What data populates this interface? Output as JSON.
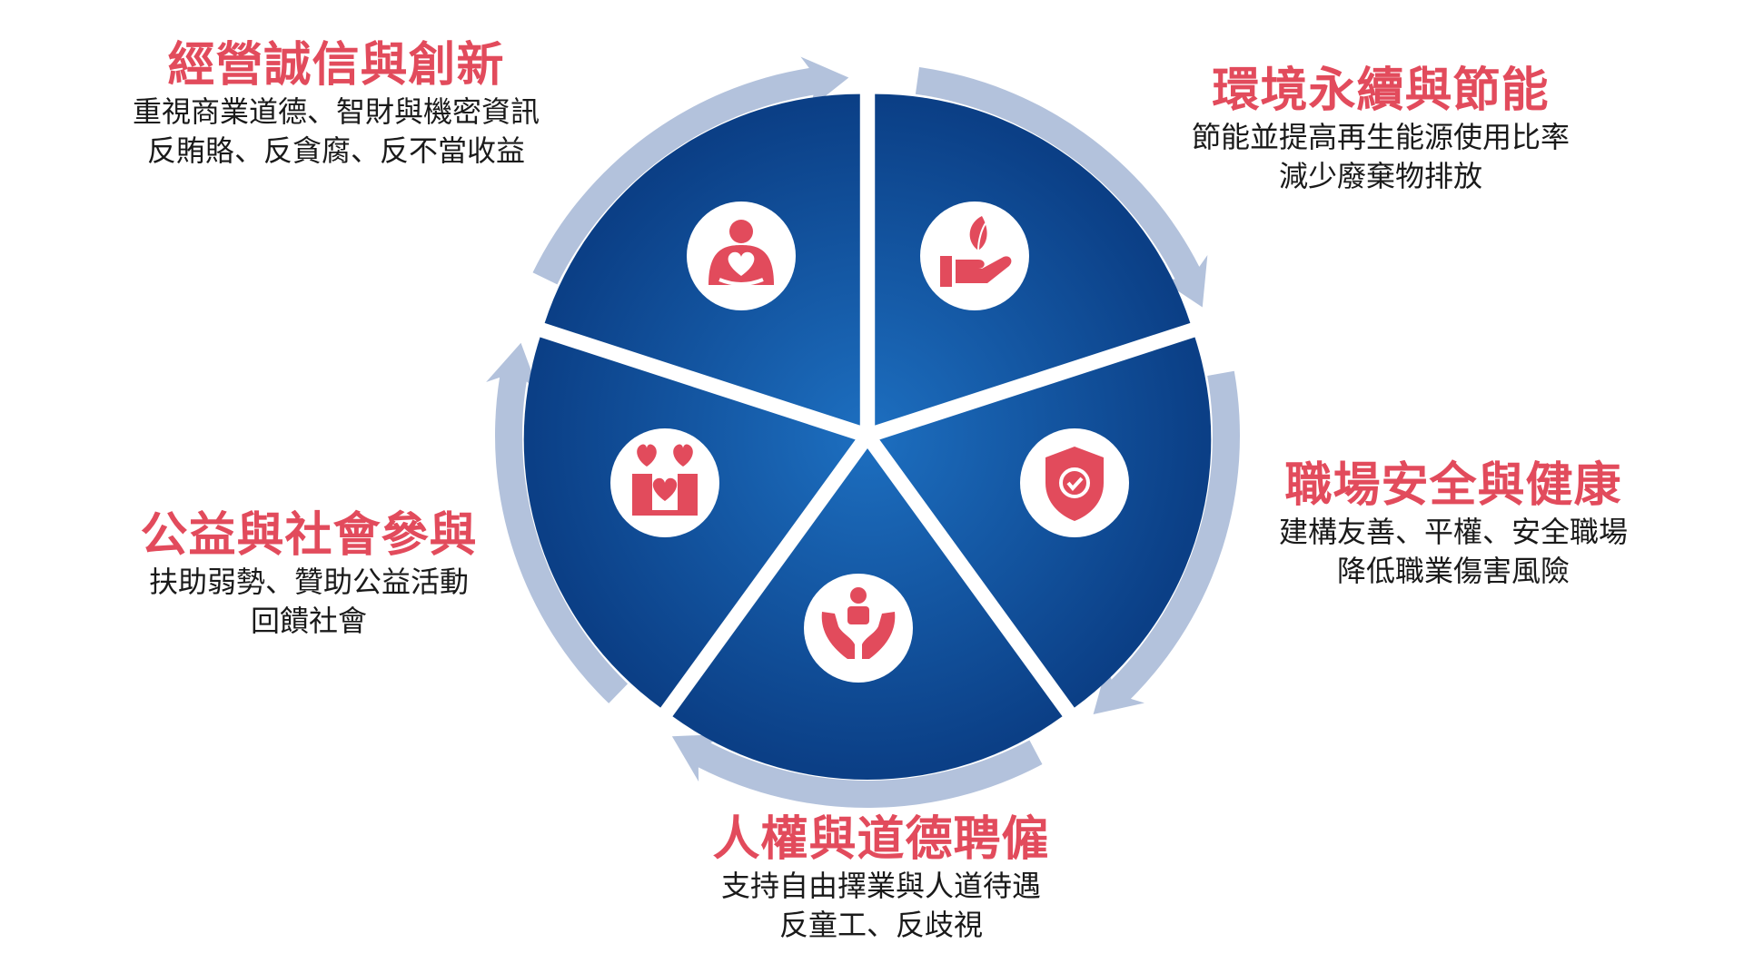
{
  "colors": {
    "title": "#e24b5c",
    "body_text": "#1a1a1a",
    "wedge_dark": "#0b3f86",
    "wedge_light": "#1d6fc0",
    "ring": "#b3c2dc",
    "icon_bg": "#ffffff",
    "icon_fg": "#e24b5c"
  },
  "segments": [
    {
      "title": "經營誠信與創新",
      "lines": [
        "重視商業道德、智財與機密資訊",
        "反賄賂、反貪腐、反不當收益"
      ],
      "icon": "person-heart-icon"
    },
    {
      "title": "環境永續與節能",
      "lines": [
        "節能並提高再生能源使用比率",
        "減少廢棄物排放"
      ],
      "icon": "hand-leaf-icon"
    },
    {
      "title": "職場安全與健康",
      "lines": [
        "建構友善、平權、安全職場",
        "降低職業傷害風險"
      ],
      "icon": "shield-check-icon"
    },
    {
      "title": "人權與道德聘僱",
      "lines": [
        "支持自由擇業與人道待遇",
        "反童工、反歧視"
      ],
      "icon": "hands-person-icon"
    },
    {
      "title": "公益與社會參與",
      "lines": [
        "扶助弱勢、贊助公益活動",
        "回饋社會"
      ],
      "icon": "community-hearts-icon"
    }
  ]
}
